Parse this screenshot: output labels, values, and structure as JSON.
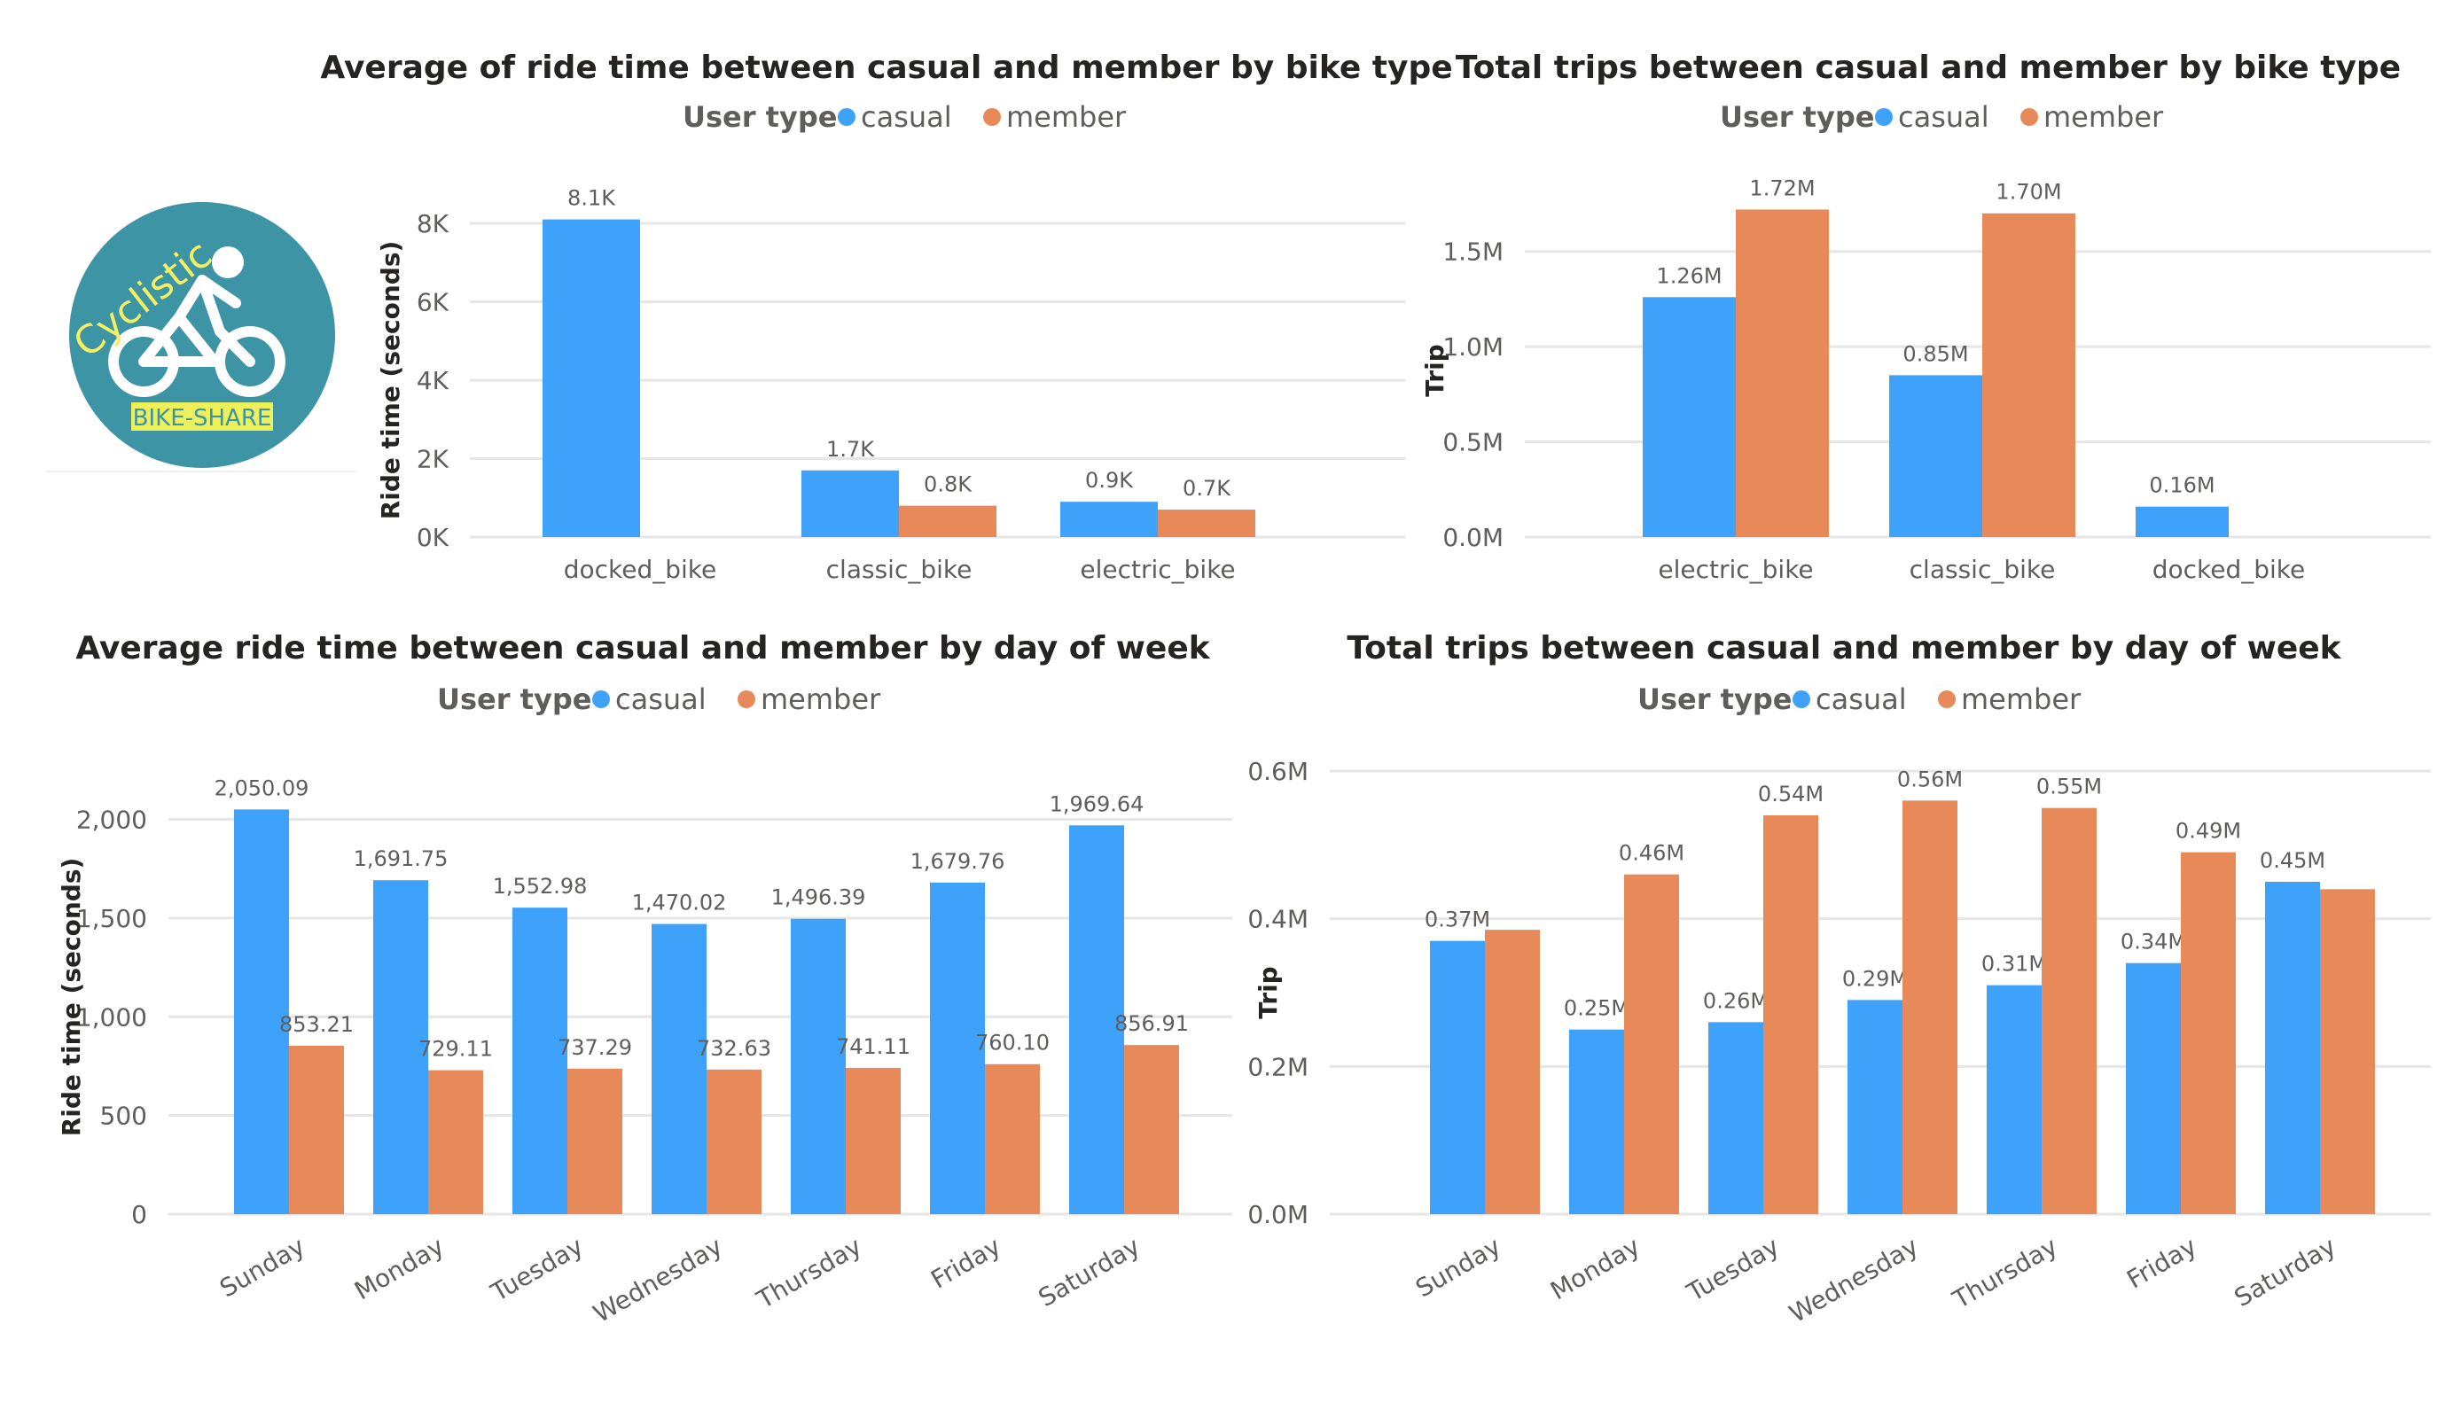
{
  "colors": {
    "casual": "#3fa2fa",
    "member": "#e8895a"
  },
  "logo": {
    "text": "Cyclistic",
    "badge": "BIKE-SHARE"
  },
  "chart_data": [
    {
      "id": "c1",
      "type": "bar",
      "title": "Average of ride time between casual and member by bike type",
      "legend_title": "User type",
      "legend_placement": "top",
      "ylabel": "Ride time (seconds)",
      "xlabel": "",
      "grid": true,
      "ylim": [
        0,
        8000
      ],
      "yticks": [
        0,
        2000,
        4000,
        6000,
        8000
      ],
      "ytick_labels": [
        "0K",
        "2K",
        "4K",
        "6K",
        "8K"
      ],
      "categories": [
        "docked_bike",
        "classic_bike",
        "electric_bike"
      ],
      "series": [
        {
          "name": "casual",
          "values": [
            8100,
            1700,
            900
          ],
          "labels": [
            "8.1K",
            "1.7K",
            "0.9K"
          ]
        },
        {
          "name": "member",
          "values": [
            null,
            800,
            700
          ],
          "labels": [
            null,
            "0.8K",
            "0.7K"
          ]
        }
      ]
    },
    {
      "id": "c2",
      "type": "bar",
      "title": "Total trips between casual and member by bike type",
      "legend_title": "User type",
      "legend_placement": "top",
      "ylabel": "Trip",
      "xlabel": "",
      "grid": true,
      "ylim": [
        0,
        1.75
      ],
      "yticks": [
        0,
        0.5,
        1.0,
        1.5
      ],
      "ytick_labels": [
        "0.0M",
        "0.5M",
        "1.0M",
        "1.5M"
      ],
      "categories": [
        "electric_bike",
        "classic_bike",
        "docked_bike"
      ],
      "series": [
        {
          "name": "casual",
          "values": [
            1.26,
            0.85,
            0.16
          ],
          "labels": [
            "1.26M",
            "0.85M",
            "0.16M"
          ]
        },
        {
          "name": "member",
          "values": [
            1.72,
            1.7,
            null
          ],
          "labels": [
            "1.72M",
            "1.70M",
            null
          ]
        }
      ]
    },
    {
      "id": "c3",
      "type": "bar",
      "title": "Average ride time between casual and member by day of week",
      "legend_title": "User type",
      "legend_placement": "top",
      "ylabel": "Ride time (seconds)",
      "xlabel": "",
      "grid": true,
      "ylim": [
        0,
        2200
      ],
      "yticks": [
        0,
        500,
        1000,
        1500,
        2000
      ],
      "ytick_labels": [
        "0",
        "500",
        "1,000",
        "1,500",
        "2,000"
      ],
      "categories": [
        "Sunday",
        "Monday",
        "Tuesday",
        "Wednesday",
        "Thursday",
        "Friday",
        "Saturday"
      ],
      "series": [
        {
          "name": "casual",
          "values": [
            2050.09,
            1691.75,
            1552.98,
            1470.02,
            1496.39,
            1679.76,
            1969.64
          ],
          "labels": [
            "2,050.09",
            "1,691.75",
            "1,552.98",
            "1,470.02",
            "1,496.39",
            "1,679.76",
            "1,969.64"
          ]
        },
        {
          "name": "member",
          "values": [
            853.21,
            729.11,
            737.29,
            732.63,
            741.11,
            760.1,
            856.91
          ],
          "labels": [
            "853.21",
            "729.11",
            "737.29",
            "732.63",
            "741.11",
            "760.10",
            "856.91"
          ]
        }
      ]
    },
    {
      "id": "c4",
      "type": "bar",
      "title": "Total trips between casual and member by day of week",
      "legend_title": "User type",
      "legend_placement": "top",
      "ylabel": "Trip",
      "xlabel": "",
      "grid": true,
      "ylim": [
        0,
        0.6
      ],
      "yticks": [
        0,
        0.2,
        0.4,
        0.6
      ],
      "ytick_labels": [
        "0.0M",
        "0.2M",
        "0.4M",
        "0.6M"
      ],
      "categories": [
        "Sunday",
        "Monday",
        "Tuesday",
        "Wednesday",
        "Thursday",
        "Friday",
        "Saturday"
      ],
      "series": [
        {
          "name": "casual",
          "values": [
            0.37,
            0.25,
            0.26,
            0.29,
            0.31,
            0.34,
            0.45
          ],
          "labels": [
            "0.37M",
            "0.25M",
            "0.26M",
            "0.29M",
            "0.31M",
            "0.34M",
            "0.45M"
          ]
        },
        {
          "name": "member",
          "values": [
            0.385,
            0.46,
            0.54,
            0.56,
            0.55,
            0.49,
            0.44
          ],
          "labels": [
            null,
            "0.46M",
            "0.54M",
            "0.56M",
            "0.55M",
            "0.49M",
            null
          ]
        }
      ]
    }
  ]
}
